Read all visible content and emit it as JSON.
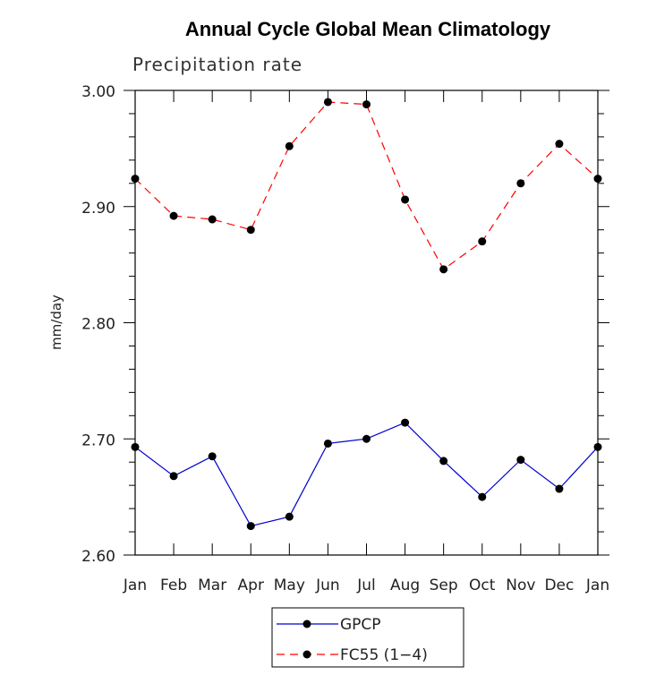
{
  "chart_data": {
    "type": "line",
    "title": "Annual Cycle Global Mean Climatology",
    "subtitle": "Precipitation rate",
    "xlabel": "",
    "ylabel": "mm/day",
    "categories": [
      "Jan",
      "Feb",
      "Mar",
      "Apr",
      "May",
      "Jun",
      "Jul",
      "Aug",
      "Sep",
      "Oct",
      "Nov",
      "Dec",
      "Jan"
    ],
    "ylim": [
      2.6,
      3.0
    ],
    "yticks": [
      "2.60",
      "2.70",
      "2.80",
      "2.90",
      "3.00"
    ],
    "grid": false,
    "legend_position": "bottom",
    "series": [
      {
        "name": "GPCP",
        "color": "#0000cc",
        "style": "solid",
        "marker": "circle",
        "values": [
          2.693,
          2.668,
          2.685,
          2.625,
          2.633,
          2.696,
          2.7,
          2.714,
          2.681,
          2.65,
          2.682,
          2.657,
          2.693
        ]
      },
      {
        "name": "FC55 (1−4)",
        "color": "#ff0000",
        "style": "dashed",
        "marker": "circle",
        "values": [
          2.924,
          2.892,
          2.889,
          2.88,
          2.952,
          2.99,
          2.988,
          2.906,
          2.846,
          2.87,
          2.92,
          2.954,
          2.924
        ]
      }
    ]
  }
}
